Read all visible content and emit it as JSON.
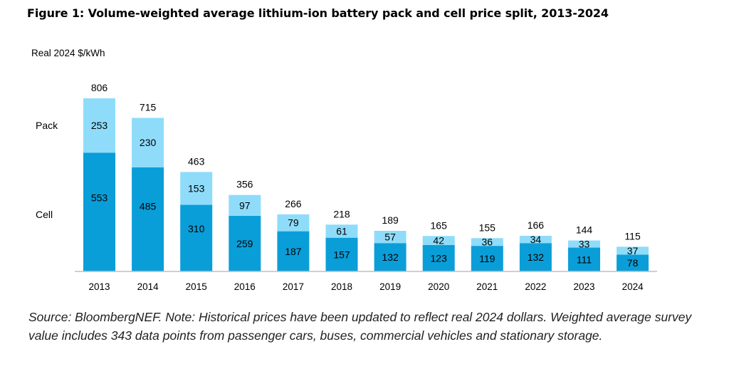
{
  "figure": {
    "title": "Figure 1: Volume-weighted average lithium-ion battery pack and cell price split, 2013-2024",
    "source": "Source: BloombergNEF. Note: Historical prices have been updated to reflect real 2024 dollars. Weighted average survey value includes 343 data points from passenger cars, buses, commercial vehicles and stationary storage."
  },
  "colors": {
    "cell": "#0a9ed9",
    "pack": "#8fdcfa",
    "axis": "#bfbfbf"
  },
  "chart_data": {
    "type": "bar",
    "stacked": true,
    "ylabel": "Real 2024 $/kWh",
    "categories": [
      "2013",
      "2014",
      "2015",
      "2016",
      "2017",
      "2018",
      "2019",
      "2020",
      "2021",
      "2022",
      "2023",
      "2024"
    ],
    "series": [
      {
        "name": "Cell",
        "values": [
          553,
          485,
          310,
          259,
          187,
          157,
          132,
          123,
          119,
          132,
          111,
          78
        ]
      },
      {
        "name": "Pack",
        "values": [
          253,
          230,
          153,
          97,
          79,
          61,
          57,
          42,
          36,
          34,
          33,
          37
        ]
      }
    ],
    "totals": [
      806,
      715,
      463,
      356,
      266,
      218,
      189,
      165,
      155,
      166,
      144,
      115
    ],
    "legend": "left"
  }
}
